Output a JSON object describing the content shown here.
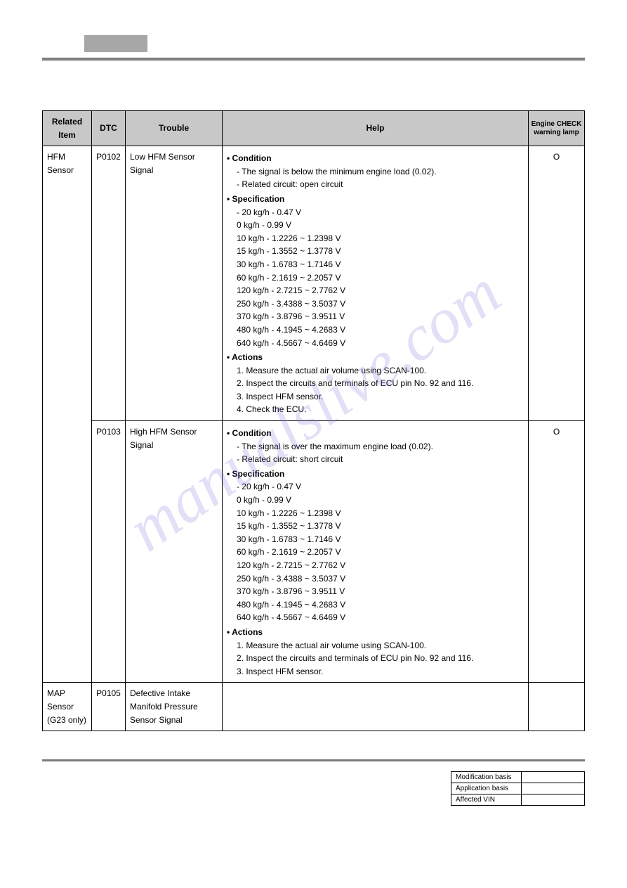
{
  "watermark_text": "manualslive.com",
  "table": {
    "headers": {
      "related": "Related\nItem",
      "dtc": "DTC",
      "trouble": "Trouble",
      "help": "Help",
      "lamp": "Engine CHECK\nwarning lamp"
    },
    "rows": [
      {
        "related": "HFM Sensor",
        "related_rowspan": 2,
        "dtc": "P0102",
        "trouble": "Low HFM Sensor Signal",
        "help": {
          "condition_title": "Condition",
          "conditions": [
            "The signal is below the minimum engine load (0.02).",
            "Related circuit: open circuit"
          ],
          "spec_title": "Specification",
          "specs": [
            "- 20 kg/h - 0.47 V",
            "0 kg/h - 0.99 V",
            "10 kg/h - 1.2226 ~ 1.2398 V",
            "15 kg/h - 1.3552 ~ 1.3778 V",
            "30 kg/h - 1.6783 ~ 1.7146 V",
            "60 kg/h - 2.1619 ~ 2.2057 V",
            "120 kg/h - 2.7215 ~ 2.7762 V",
            "250 kg/h - 3.4388 ~ 3.5037 V",
            "370 kg/h - 3.8796 ~ 3.9511 V",
            "480 kg/h - 4.1945 ~ 4.2683 V",
            "640 kg/h - 4.5667 ~ 4.6469 V"
          ],
          "actions_title": "Actions",
          "actions": [
            "1. Measure the actual air volume using SCAN-100.",
            "2. Inspect the circuits and terminals of ECU pin No. 92 and 116.",
            "3. Inspect HFM sensor.",
            "4. Check the ECU."
          ]
        },
        "lamp": "O"
      },
      {
        "dtc": "P0103",
        "trouble": "High HFM Sensor Signal",
        "help": {
          "condition_title": "Condition",
          "conditions": [
            "The signal is over the maximum engine load (0.02).",
            "Related circuit: short circuit"
          ],
          "spec_title": "Specification",
          "specs": [
            "- 20 kg/h - 0.47 V",
            "0 kg/h - 0.99 V",
            "10 kg/h - 1.2226 ~ 1.2398 V",
            "15 kg/h - 1.3552 ~ 1.3778 V",
            "30 kg/h - 1.6783 ~ 1.7146 V",
            "60 kg/h - 2.1619 ~ 2.2057 V",
            "120 kg/h - 2.7215 ~ 2.7762 V",
            "250 kg/h - 3.4388 ~ 3.5037 V",
            "370 kg/h - 3.8796 ~ 3.9511 V",
            "480 kg/h - 4.1945 ~ 4.2683 V",
            "640 kg/h - 4.5667 ~ 4.6469 V"
          ],
          "actions_title": "Actions",
          "actions": [
            "1. Measure the actual air volume using SCAN-100.",
            "2. Inspect the circuits and terminals of ECU pin No. 92 and 116.",
            "3. Inspect HFM sensor."
          ]
        },
        "lamp": "O"
      },
      {
        "related": "MAP Sensor (G23 only)",
        "dtc": "P0105",
        "trouble": "Defective Intake Manifold Pressure Sensor Signal",
        "help": null,
        "lamp": ""
      }
    ]
  },
  "footer": {
    "rows": [
      {
        "label": "Modification basis",
        "value": ""
      },
      {
        "label": "Application basis",
        "value": ""
      },
      {
        "label": "Affected VIN",
        "value": ""
      }
    ]
  }
}
